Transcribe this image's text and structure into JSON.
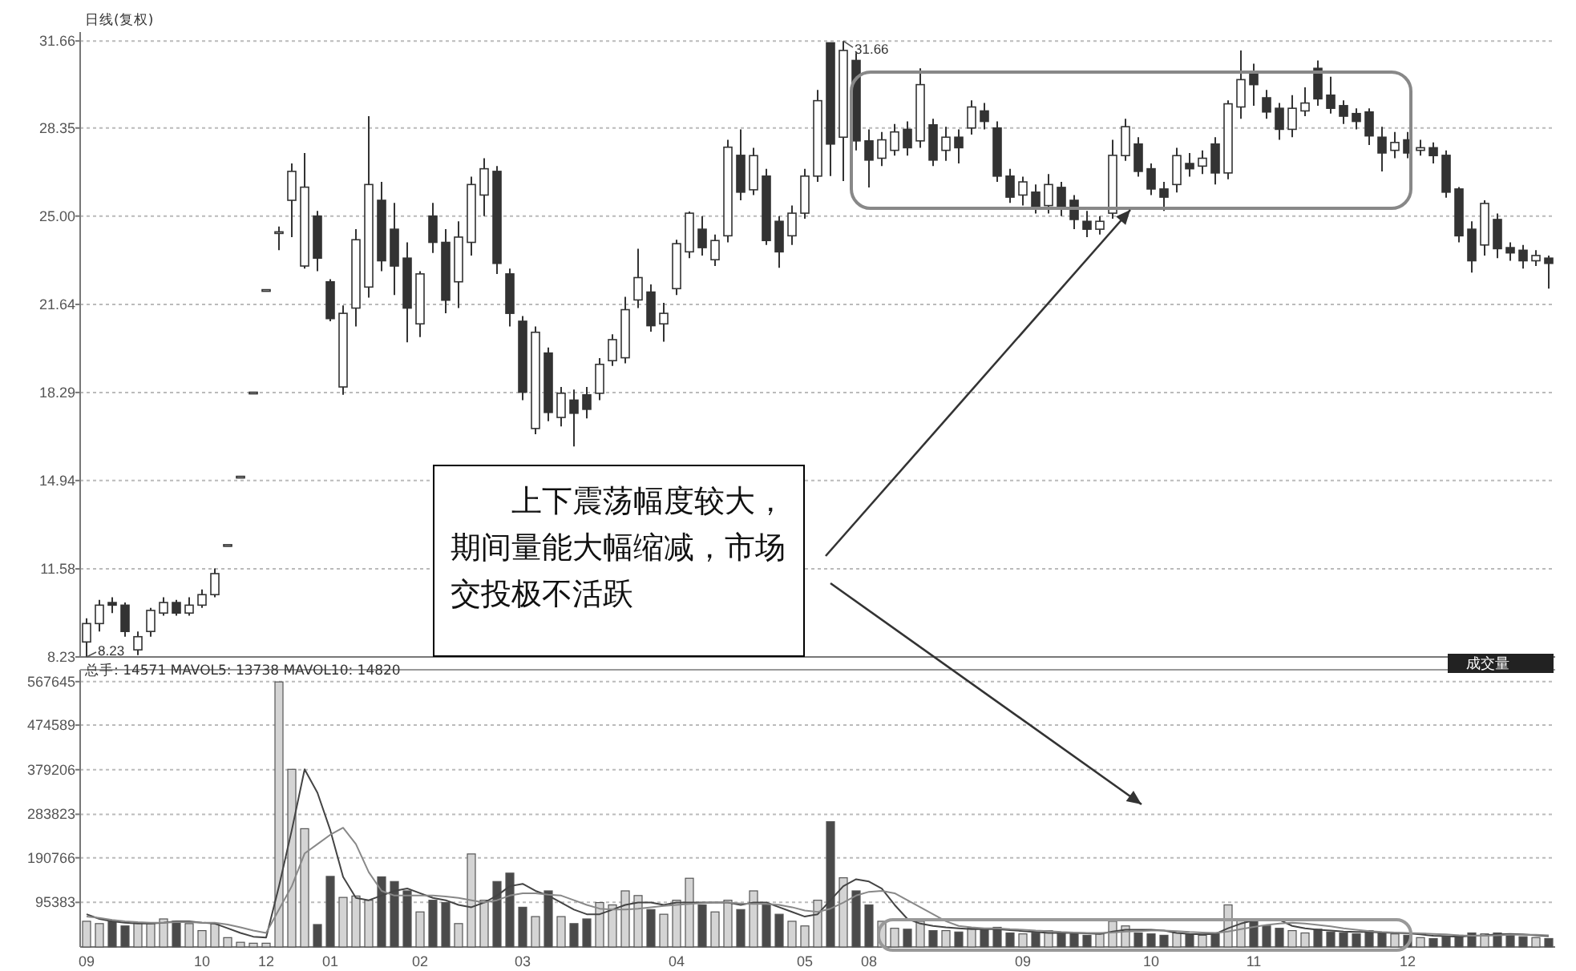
{
  "chart_data": [
    {
      "type": "candlestick",
      "title": "日线(复权)",
      "categories": [
        null,
        null,
        null,
        null,
        null,
        null,
        null,
        null,
        null,
        null,
        null,
        null,
        null,
        null,
        null,
        null,
        null,
        null,
        null,
        null,
        null,
        null,
        null,
        null,
        null,
        null,
        null,
        null,
        null,
        null,
        null,
        null,
        null,
        null,
        null,
        null,
        null,
        null,
        null,
        null,
        null,
        null,
        null,
        null,
        null,
        null,
        null,
        null,
        null,
        null,
        null,
        null,
        null,
        null,
        null,
        null,
        null,
        null,
        null,
        null,
        null,
        null,
        null,
        null,
        null,
        null,
        null,
        null,
        null,
        null,
        null,
        null,
        null,
        null,
        null,
        null,
        null,
        null,
        null,
        null,
        null,
        null,
        null,
        null,
        null,
        null,
        null,
        null,
        null,
        null,
        null,
        null,
        null,
        null,
        null,
        null,
        null,
        null,
        null,
        null,
        null,
        null,
        null,
        null,
        null,
        null,
        null,
        null,
        null,
        null,
        null,
        null,
        null,
        null,
        null
      ],
      "ohlc": [
        [
          8.8,
          9.7,
          8.23,
          9.5
        ],
        [
          9.5,
          10.4,
          9.2,
          10.2
        ],
        [
          10.3,
          10.5,
          9.9,
          10.2
        ],
        [
          10.2,
          10.3,
          9.0,
          9.2
        ],
        [
          8.5,
          9.2,
          8.3,
          9.0
        ],
        [
          9.2,
          10.1,
          9.0,
          10.0
        ],
        [
          9.9,
          10.5,
          9.8,
          10.3
        ],
        [
          10.3,
          10.4,
          9.8,
          9.9
        ],
        [
          9.9,
          10.5,
          9.8,
          10.2
        ],
        [
          10.2,
          10.8,
          10.1,
          10.6
        ],
        [
          10.6,
          11.6,
          10.5,
          11.4
        ],
        [
          12.5,
          12.5,
          12.5,
          12.5
        ],
        [
          15.1,
          15.1,
          15.1,
          15.1
        ],
        [
          18.3,
          18.3,
          18.3,
          18.3
        ],
        [
          22.2,
          22.2,
          22.2,
          22.2
        ],
        [
          24.4,
          24.6,
          23.7,
          24.4
        ],
        [
          25.6,
          27.0,
          24.2,
          26.7
        ],
        [
          23.1,
          27.4,
          23.0,
          26.1
        ],
        [
          25.0,
          25.2,
          22.9,
          23.4
        ],
        [
          22.5,
          22.6,
          21.0,
          21.1
        ],
        [
          18.5,
          21.6,
          18.2,
          21.3
        ],
        [
          21.5,
          24.5,
          20.8,
          24.1
        ],
        [
          22.3,
          28.8,
          21.9,
          26.2
        ],
        [
          25.6,
          26.3,
          22.9,
          23.3
        ],
        [
          24.5,
          25.5,
          22.0,
          23.1
        ],
        [
          23.4,
          24.0,
          20.2,
          21.5
        ],
        [
          20.9,
          22.9,
          20.4,
          22.8
        ],
        [
          25.0,
          25.5,
          23.6,
          24.0
        ],
        [
          24.0,
          24.5,
          21.3,
          21.8
        ],
        [
          22.5,
          24.8,
          21.5,
          24.2
        ],
        [
          24.0,
          26.5,
          23.5,
          26.2
        ],
        [
          25.8,
          27.2,
          25.0,
          26.8
        ],
        [
          26.7,
          26.9,
          22.8,
          23.2
        ],
        [
          22.8,
          23.0,
          20.8,
          21.3
        ],
        [
          21.0,
          21.2,
          18.0,
          18.3
        ],
        [
          16.92,
          20.8,
          16.7,
          20.58
        ],
        [
          19.79,
          20.0,
          17.2,
          17.53
        ],
        [
          17.34,
          18.5,
          17.0,
          18.26
        ],
        [
          18.0,
          18.4,
          16.24,
          17.5
        ],
        [
          18.2,
          18.5,
          17.3,
          17.65
        ],
        [
          18.26,
          19.6,
          18.0,
          19.36
        ],
        [
          19.5,
          20.5,
          19.3,
          20.3
        ],
        [
          19.61,
          21.93,
          19.4,
          21.44
        ],
        [
          21.81,
          23.76,
          21.5,
          22.66
        ],
        [
          22.11,
          22.4,
          20.6,
          20.83
        ],
        [
          20.9,
          21.7,
          20.22,
          21.3
        ],
        [
          22.24,
          24.1,
          22.0,
          23.95
        ],
        [
          23.64,
          25.17,
          23.4,
          25.11
        ],
        [
          24.5,
          25.0,
          23.5,
          23.8
        ],
        [
          23.34,
          24.3,
          23.1,
          24.07
        ],
        [
          24.25,
          27.9,
          24.0,
          27.62
        ],
        [
          27.31,
          28.3,
          25.6,
          25.91
        ],
        [
          26.0,
          27.6,
          25.8,
          27.3
        ],
        [
          26.52,
          26.8,
          23.9,
          24.07
        ],
        [
          24.8,
          25.0,
          23.03,
          23.64
        ],
        [
          24.25,
          25.4,
          23.9,
          25.11
        ],
        [
          25.11,
          26.8,
          24.9,
          26.52
        ],
        [
          26.52,
          29.8,
          26.3,
          29.39
        ],
        [
          31.59,
          31.6,
          26.52,
          27.74
        ],
        [
          28.0,
          31.66,
          26.33,
          31.3
        ],
        [
          30.92,
          31.2,
          27.5,
          27.86
        ],
        [
          27.86,
          28.3,
          26.09,
          27.13
        ],
        [
          27.2,
          28.2,
          26.9,
          27.9
        ],
        [
          27.5,
          28.5,
          27.3,
          28.2
        ],
        [
          28.3,
          28.6,
          27.3,
          27.6
        ],
        [
          27.86,
          30.62,
          27.6,
          30.0
        ],
        [
          28.47,
          28.7,
          26.9,
          27.13
        ],
        [
          27.5,
          28.4,
          27.1,
          28.0
        ],
        [
          28.0,
          28.3,
          27.0,
          27.6
        ],
        [
          28.35,
          29.4,
          28.1,
          29.15
        ],
        [
          29.0,
          29.3,
          28.3,
          28.6
        ],
        [
          28.35,
          28.6,
          26.3,
          26.52
        ],
        [
          26.52,
          26.8,
          25.5,
          25.72
        ],
        [
          25.8,
          26.5,
          25.4,
          26.3
        ],
        [
          25.91,
          26.2,
          25.1,
          25.29
        ],
        [
          25.4,
          26.6,
          25.1,
          26.2
        ],
        [
          26.09,
          26.3,
          25.0,
          25.29
        ],
        [
          25.6,
          25.8,
          24.5,
          24.87
        ],
        [
          24.8,
          25.2,
          24.2,
          24.5
        ],
        [
          24.5,
          25.0,
          24.3,
          24.8
        ],
        [
          25.11,
          27.9,
          24.9,
          27.31
        ],
        [
          27.3,
          28.7,
          27.1,
          28.4
        ],
        [
          27.74,
          28.0,
          26.5,
          26.7
        ],
        [
          26.8,
          27.0,
          25.8,
          26.03
        ],
        [
          26.03,
          26.3,
          25.2,
          25.72
        ],
        [
          26.2,
          27.6,
          25.9,
          27.3
        ],
        [
          27.0,
          27.4,
          26.5,
          26.8
        ],
        [
          26.9,
          27.5,
          26.6,
          27.2
        ],
        [
          27.74,
          28.0,
          26.2,
          26.64
        ],
        [
          26.64,
          29.4,
          26.4,
          29.27
        ],
        [
          29.15,
          31.3,
          28.7,
          30.19
        ],
        [
          30.4,
          30.8,
          29.2,
          30.0
        ],
        [
          29.5,
          29.8,
          28.7,
          28.96
        ],
        [
          29.1,
          29.3,
          27.9,
          28.3
        ],
        [
          28.3,
          29.6,
          28.0,
          29.1
        ],
        [
          29.0,
          29.9,
          28.8,
          29.3
        ],
        [
          30.62,
          30.92,
          29.2,
          29.46
        ],
        [
          29.6,
          30.3,
          28.9,
          29.1
        ],
        [
          29.2,
          29.4,
          28.5,
          28.8
        ],
        [
          28.9,
          29.1,
          28.3,
          28.6
        ],
        [
          28.96,
          29.1,
          27.7,
          28.05
        ],
        [
          28.0,
          28.4,
          26.7,
          27.4
        ],
        [
          27.5,
          28.2,
          27.2,
          27.8
        ],
        [
          27.9,
          28.2,
          27.2,
          27.4
        ],
        [
          27.5,
          27.9,
          27.3,
          27.6
        ],
        [
          27.6,
          27.8,
          27.0,
          27.3
        ],
        [
          27.31,
          27.5,
          25.7,
          25.91
        ],
        [
          26.03,
          26.1,
          24.0,
          24.25
        ],
        [
          24.5,
          24.8,
          22.85,
          23.3
        ],
        [
          23.9,
          25.6,
          23.5,
          25.48
        ],
        [
          24.87,
          25.1,
          23.4,
          23.76
        ],
        [
          23.8,
          24.0,
          23.3,
          23.6
        ],
        [
          23.7,
          23.9,
          23.0,
          23.3
        ],
        [
          23.3,
          23.7,
          23.1,
          23.5
        ],
        [
          23.4,
          23.5,
          22.24,
          23.2
        ]
      ],
      "ylim": [
        8.23,
        32.0
      ],
      "yticks": [
        8.23,
        11.58,
        14.94,
        18.29,
        21.64,
        {
          "value": 25,
          "label": "25.00"
        },
        28.35,
        31.66
      ],
      "grid": "y",
      "tick_labels": "y",
      "annotations": [
        "31.66",
        "8.23",
        "上下震荡幅度较大，期间量能大幅缩减，市场交投极不活跃"
      ]
    },
    {
      "type": "bar",
      "title": "总手: 14571 MAVOL5: 13738 MAVOL10: 14820",
      "categories": [
        "09",
        null,
        null,
        null,
        null,
        null,
        null,
        null,
        null,
        "10",
        null,
        null,
        null,
        null,
        "12",
        null,
        null,
        null,
        null,
        "01",
        null,
        null,
        null,
        null,
        null,
        null,
        "02",
        null,
        null,
        null,
        null,
        null,
        null,
        null,
        "03",
        null,
        null,
        null,
        null,
        null,
        null,
        null,
        null,
        null,
        null,
        null,
        "04",
        null,
        null,
        null,
        null,
        null,
        null,
        null,
        null,
        null,
        "05",
        null,
        null,
        null,
        null,
        "08",
        null,
        null,
        null,
        null,
        null,
        null,
        null,
        null,
        null,
        null,
        null,
        "09",
        null,
        null,
        null,
        null,
        null,
        null,
        null,
        null,
        null,
        "10",
        null,
        null,
        null,
        null,
        null,
        null,
        null,
        "11",
        null,
        null,
        null,
        null,
        null,
        null,
        null,
        null,
        null,
        null,
        null,
        "12",
        null,
        null,
        null,
        null,
        null,
        null,
        null,
        null,
        null,
        null,
        null
      ],
      "series": [
        {
          "type": "bar",
          "values": [
            55000,
            50000,
            55000,
            45000,
            52000,
            50000,
            60000,
            55000,
            50000,
            35000,
            50000,
            20000,
            10000,
            8000,
            8000,
            567000,
            380000,
            253000,
            48000,
            151000,
            106000,
            109000,
            100000,
            150000,
            140000,
            120000,
            75000,
            100000,
            95000,
            50000,
            199000,
            100000,
            140000,
            158000,
            85000,
            65000,
            120000,
            65000,
            50000,
            60000,
            95000,
            90000,
            120000,
            110000,
            80000,
            70000,
            100000,
            147000,
            90000,
            75000,
            100000,
            80000,
            120000,
            90000,
            70000,
            55000,
            45000,
            100000,
            268000,
            148000,
            120000,
            90000,
            55000,
            40000,
            38000,
            55000,
            35000,
            35000,
            32000,
            40000,
            38000,
            42000,
            30000,
            28000,
            30000,
            35000,
            28000,
            30000,
            25000,
            28000,
            55000,
            45000,
            30000,
            28000,
            25000,
            30000,
            28000,
            25000,
            30000,
            90000,
            60000,
            55000,
            45000,
            40000,
            35000,
            30000,
            38000,
            32000,
            30000,
            28000,
            35000,
            30000,
            28000,
            25000,
            20000,
            18000,
            22000,
            25000,
            30000,
            28000,
            30000,
            25000,
            22000,
            20000,
            18000
          ],
          "colors": [
            "#d4d4d4",
            "#d4d4d4",
            "#4a4a4a",
            "#4a4a4a",
            "#d4d4d4",
            "#d4d4d4",
            "#d4d4d4",
            "#4a4a4a",
            "#d4d4d4",
            "#d4d4d4",
            "#d4d4d4",
            "#d4d4d4",
            "#d4d4d4",
            "#d4d4d4",
            "#d4d4d4",
            "#d4d4d4",
            "#d4d4d4",
            "#d4d4d4",
            "#4a4a4a",
            "#4a4a4a",
            "#d4d4d4",
            "#d4d4d4",
            "#d4d4d4",
            "#4a4a4a",
            "#4a4a4a",
            "#4a4a4a",
            "#d4d4d4",
            "#4a4a4a",
            "#4a4a4a",
            "#d4d4d4",
            "#d4d4d4",
            "#d4d4d4",
            "#4a4a4a",
            "#4a4a4a",
            "#4a4a4a",
            "#d4d4d4",
            "#4a4a4a",
            "#d4d4d4",
            "#4a4a4a",
            "#4a4a4a",
            "#d4d4d4",
            "#d4d4d4",
            "#d4d4d4",
            "#d4d4d4",
            "#4a4a4a",
            "#d4d4d4",
            "#d4d4d4",
            "#d4d4d4",
            "#4a4a4a",
            "#d4d4d4",
            "#d4d4d4",
            "#4a4a4a",
            "#d4d4d4",
            "#4a4a4a",
            "#4a4a4a",
            "#d4d4d4",
            "#d4d4d4",
            "#d4d4d4",
            "#4a4a4a",
            "#d4d4d4",
            "#4a4a4a",
            "#4a4a4a",
            "#d4d4d4",
            "#d4d4d4",
            "#4a4a4a",
            "#d4d4d4",
            "#4a4a4a",
            "#d4d4d4",
            "#4a4a4a",
            "#d4d4d4",
            "#4a4a4a",
            "#4a4a4a",
            "#4a4a4a",
            "#d4d4d4",
            "#4a4a4a",
            "#d4d4d4",
            "#4a4a4a",
            "#4a4a4a",
            "#4a4a4a",
            "#d4d4d4",
            "#d4d4d4",
            "#d4d4d4",
            "#4a4a4a",
            "#4a4a4a",
            "#4a4a4a",
            "#d4d4d4",
            "#4a4a4a",
            "#d4d4d4",
            "#4a4a4a",
            "#d4d4d4",
            "#d4d4d4",
            "#4a4a4a",
            "#4a4a4a",
            "#4a4a4a",
            "#d4d4d4",
            "#d4d4d4",
            "#4a4a4a",
            "#4a4a4a",
            "#4a4a4a",
            "#4a4a4a",
            "#4a4a4a",
            "#4a4a4a",
            "#d4d4d4",
            "#4a4a4a",
            "#d4d4d4",
            "#4a4a4a",
            "#4a4a4a",
            "#4a4a4a",
            "#4a4a4a",
            "#d4d4d4",
            "#4a4a4a",
            "#4a4a4a",
            "#4a4a4a",
            "#d4d4d4",
            "#4a4a4a"
          ]
        },
        {
          "type": "line",
          "color": "#444444",
          "values": [
            70000,
            60000,
            55000,
            52000,
            50000,
            50000,
            52000,
            55000,
            55000,
            52000,
            50000,
            40000,
            30000,
            22000,
            20000,
            130000,
            250000,
            380000,
            330000,
            250000,
            150000,
            105000,
            100000,
            110000,
            120000,
            125000,
            115000,
            105000,
            100000,
            90000,
            85000,
            95000,
            110000,
            130000,
            135000,
            120000,
            110000,
            95000,
            80000,
            70000,
            70000,
            80000,
            90000,
            95000,
            95000,
            90000,
            95000,
            95000,
            95000,
            95000,
            95000,
            90000,
            95000,
            95000,
            85000,
            75000,
            65000,
            70000,
            100000,
            130000,
            145000,
            140000,
            125000,
            90000,
            60000,
            50000,
            45000,
            42000,
            40000,
            38000,
            38000,
            38000,
            36000,
            34000,
            32000,
            30000,
            30000,
            30000,
            29000,
            28000,
            33000,
            37000,
            37000,
            37000,
            35000,
            30000,
            28000,
            27000,
            28000,
            40000,
            50000,
            57000,
            60000,
            58000,
            45000,
            40000,
            37000,
            35000,
            33000,
            32000,
            32000,
            31000,
            30000,
            29000,
            27000,
            24000,
            23000,
            22000,
            24000,
            25000,
            27000,
            28000,
            27000,
            25000,
            23000
          ]
        },
        {
          "type": "line",
          "color": "#888888",
          "values": [
            65000,
            62000,
            58000,
            55000,
            53000,
            52000,
            52000,
            53000,
            53000,
            52000,
            52000,
            48000,
            42000,
            35000,
            30000,
            80000,
            130000,
            200000,
            220000,
            240000,
            255000,
            220000,
            160000,
            120000,
            110000,
            110000,
            110000,
            110000,
            108000,
            105000,
            100000,
            95000,
            100000,
            110000,
            115000,
            115000,
            112000,
            110000,
            100000,
            90000,
            82000,
            80000,
            80000,
            82000,
            85000,
            88000,
            90000,
            92000,
            94000,
            95000,
            95000,
            93000,
            92000,
            92000,
            90000,
            85000,
            78000,
            75000,
            82000,
            95000,
            110000,
            118000,
            120000,
            115000,
            100000,
            85000,
            70000,
            55000,
            45000,
            42000,
            40000,
            40000,
            38000,
            37000,
            35000,
            34000,
            32000,
            31000,
            30000,
            30000,
            31000,
            33000,
            34000,
            35000,
            35000,
            34000,
            32000,
            31000,
            30000,
            33000,
            38000,
            43000,
            47000,
            50000,
            52000,
            50000,
            47000,
            44000,
            40000,
            37000,
            34000,
            32000,
            31000,
            30000,
            29000,
            28000,
            27000,
            25000,
            24000,
            24000,
            25000,
            26000,
            26000,
            26000,
            25000
          ]
        }
      ],
      "ylim": [
        0,
        593000
      ],
      "yticks": [
        95383,
        190766,
        283823,
        379206,
        474589,
        567645
      ],
      "grid": "y",
      "annotations": [
        "成交量"
      ]
    }
  ]
}
